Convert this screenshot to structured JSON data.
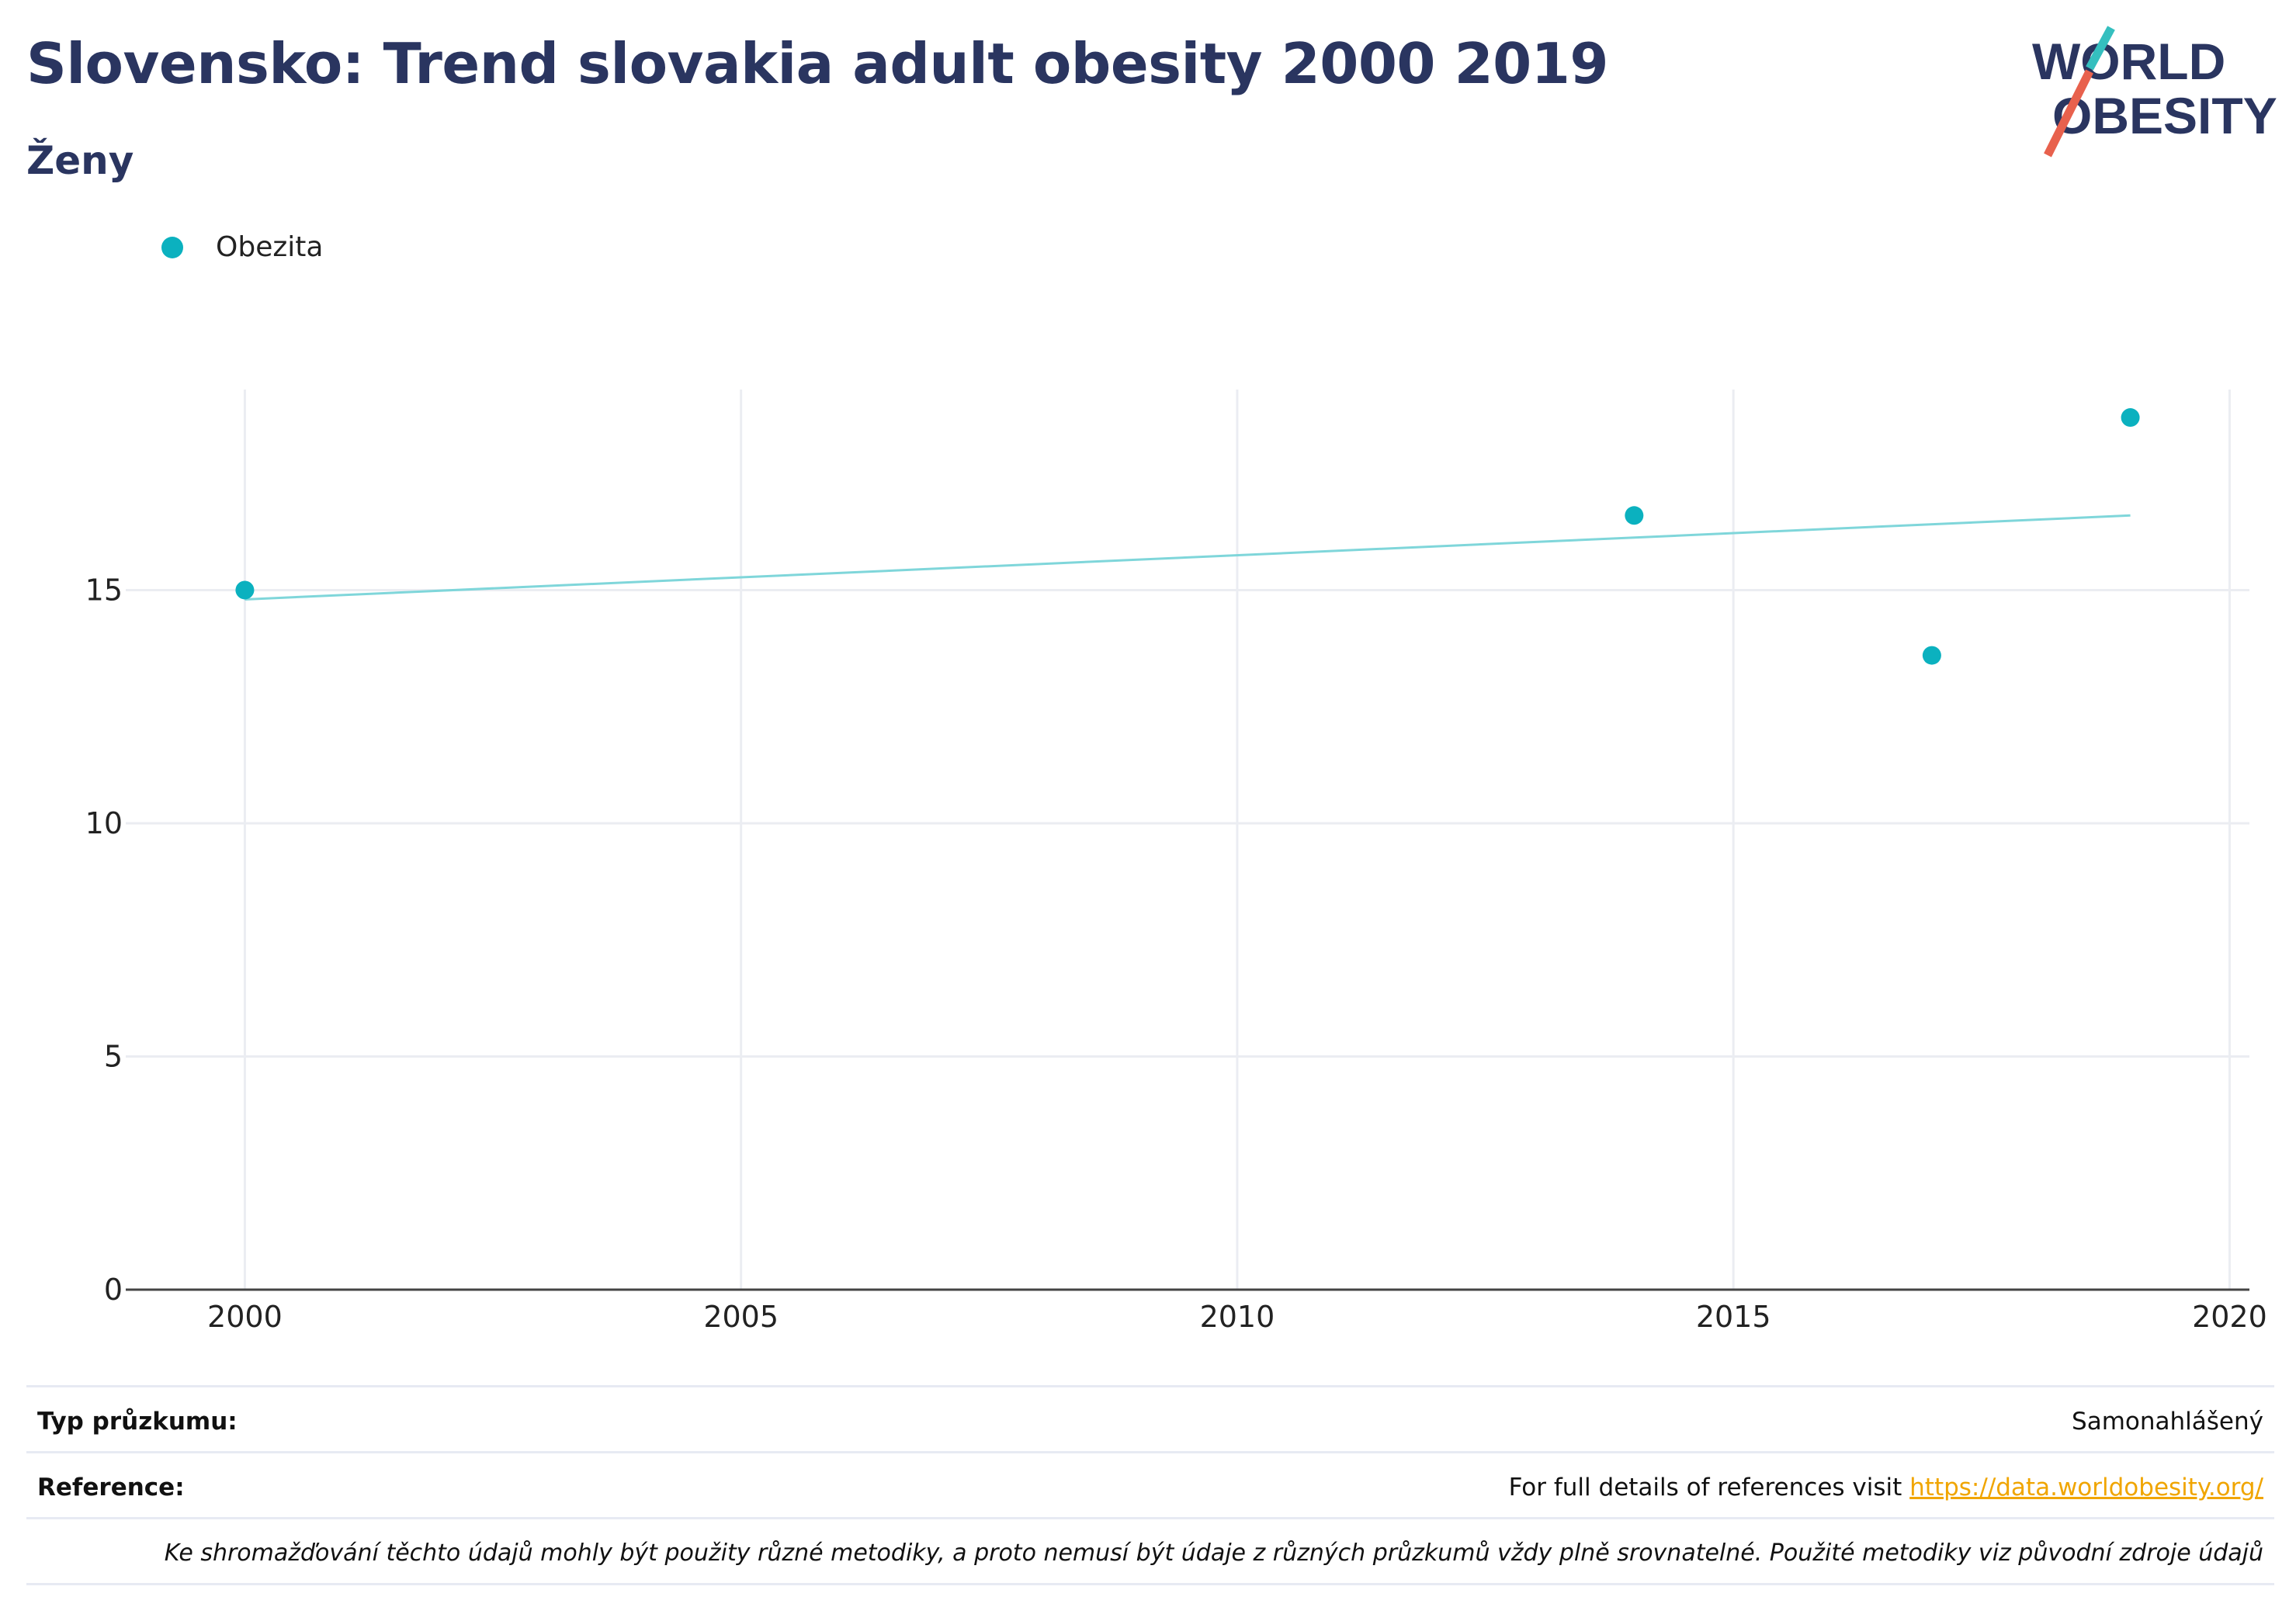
{
  "header": {
    "title": "Slovensko: Trend slovakia adult obesity 2000 2019",
    "subtitle": "Ženy"
  },
  "logo": {
    "line1": "WORLD",
    "line2": "OBESITY",
    "text_color": "#2a3560",
    "slash_top": "#35bfbf",
    "slash_bottom": "#e8614d"
  },
  "legend": {
    "items": [
      {
        "label": "Obezita",
        "color": "#0bb1bf"
      }
    ]
  },
  "chart_data": {
    "type": "scatter",
    "series": [
      {
        "name": "Obezita",
        "color": "#0bb1bf",
        "points": [
          {
            "x": 2000,
            "y": 15.0
          },
          {
            "x": 2014,
            "y": 16.6
          },
          {
            "x": 2017,
            "y": 13.6
          },
          {
            "x": 2019,
            "y": 18.7
          }
        ]
      }
    ],
    "trendline": {
      "color": "#7fd6da",
      "x": [
        2000,
        2019
      ],
      "y": [
        14.8,
        16.6
      ]
    },
    "xlim": [
      1998.8,
      2020.2
    ],
    "ylim": [
      0,
      19.3
    ],
    "xticks": [
      2000,
      2005,
      2010,
      2015,
      2020
    ],
    "yticks": [
      0,
      5,
      10,
      15
    ],
    "grid": true,
    "legend_position": "top-left",
    "xlabel": "",
    "ylabel": ""
  },
  "footer": {
    "survey_type_label": "Typ průzkumu:",
    "survey_type_value": "Samonahlášený",
    "reference_label": "Reference:",
    "reference_text": "For full details of references visit ",
    "reference_link": "https://data.worldobesity.org/",
    "note": "Ke shromažďování těchto údajů mohly být použity různé metodiky, a proto nemusí být údaje z různých průzkumů vždy plně srovnatelné. Použité metodiky viz původní zdroje údajů"
  }
}
